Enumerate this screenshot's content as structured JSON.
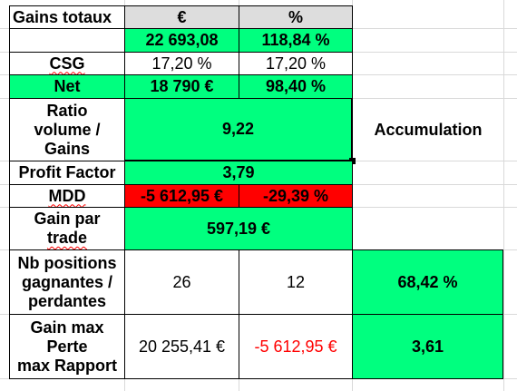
{
  "headers": {
    "label": "Gains totaux",
    "euro": "€",
    "percent": "%"
  },
  "gains_totaux": {
    "euro": "22 693,08",
    "percent": "118,84 %"
  },
  "csg": {
    "label": "CSG",
    "euro": "17,20 %",
    "percent": "17,20 %"
  },
  "net": {
    "label": "Net",
    "euro": "18 790 €",
    "percent": "98,40 %"
  },
  "ratio": {
    "label_l1": "Ratio",
    "label_l2": "volume /",
    "label_l3": "Gains",
    "value": "9,22"
  },
  "accumulation_label": "Accumulation",
  "profit_factor": {
    "label": "Profit Factor",
    "value": "3,79"
  },
  "mdd": {
    "label": "MDD",
    "euro": "-5 612,95 €",
    "percent": "-29,39 %"
  },
  "gain_par_trade": {
    "label_l1": "Gain par",
    "label_l2": "trade",
    "value": "597,19 €"
  },
  "positions": {
    "label_l1": "Nb positions",
    "label_l2": "gagnantes /",
    "label_l3": "perdantes",
    "gagnantes": "26",
    "perdantes": "12",
    "ratio": "68,42 %"
  },
  "gain_perte": {
    "label_l1": "Gain max",
    "label_l2": "Perte",
    "label_l3": "max Rapport",
    "gain": "20 255,41 €",
    "perte": "-5 612,95 €",
    "rapport": "3,61"
  },
  "colors": {
    "green": "#00ff7f",
    "red": "#ff0000",
    "header_gray": "#dddddd"
  }
}
